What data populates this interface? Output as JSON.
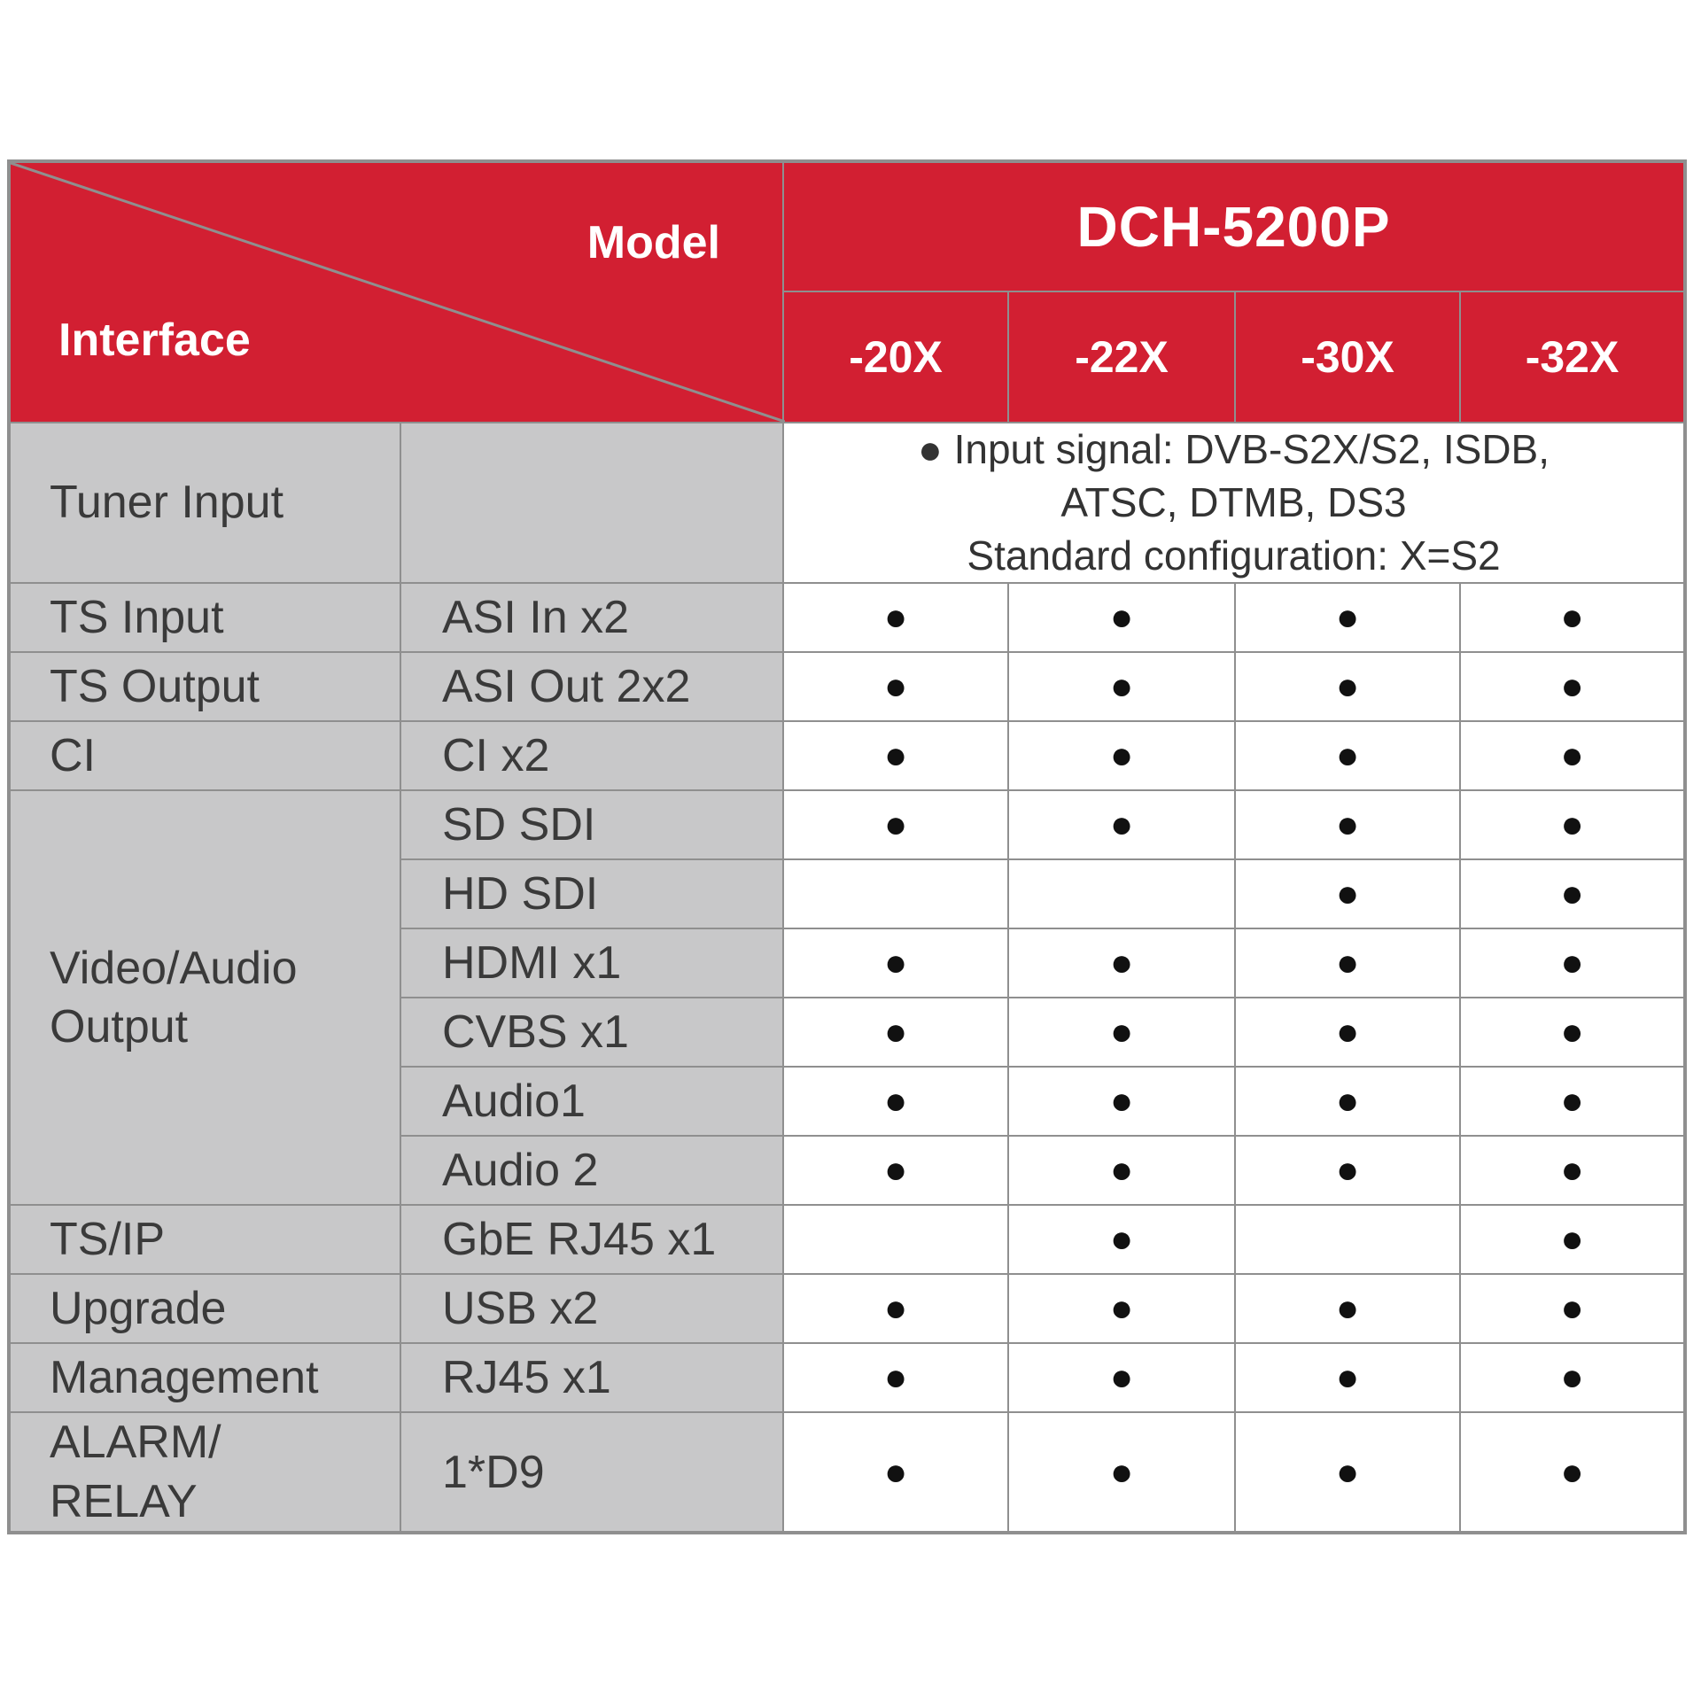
{
  "header": {
    "corner_model_label": "Model",
    "corner_interface_label": "Interface",
    "model_name": "DCH-5200P",
    "variants": [
      "-20X",
      "-22X",
      "-30X",
      "-32X"
    ]
  },
  "tuner_input": {
    "label": "Tuner Input",
    "note_line1": "● Input signal: DVB-S2X/S2, ISDB,",
    "note_line2": "ATSC, DTMB, DS3",
    "note_line3": "Standard configuration: X=S2"
  },
  "rows": [
    {
      "group": "TS Input",
      "interface": "ASI In x2",
      "values": [
        "●",
        "●",
        "●",
        "●"
      ]
    },
    {
      "group": "TS Output",
      "interface": "ASI Out 2x2",
      "values": [
        "●",
        "●",
        "●",
        "●"
      ]
    },
    {
      "group": "CI",
      "interface": "CI x2",
      "values": [
        "●",
        "●",
        "●",
        "●"
      ]
    },
    {
      "group": "Video/Audio Output",
      "interface": "SD SDI",
      "values": [
        "●",
        "●",
        "●",
        "●"
      ]
    },
    {
      "group": "",
      "interface": "HD SDI",
      "values": [
        "",
        "",
        "●",
        "●"
      ]
    },
    {
      "group": "",
      "interface": "HDMI x1",
      "values": [
        "●",
        "●",
        "●",
        "●"
      ]
    },
    {
      "group": "",
      "interface": "CVBS x1",
      "values": [
        "●",
        "●",
        "●",
        "●"
      ]
    },
    {
      "group": "",
      "interface": "Audio1",
      "values": [
        "●",
        "●",
        "●",
        "●"
      ]
    },
    {
      "group": "",
      "interface": "Audio 2",
      "values": [
        "●",
        "●",
        "●",
        "●"
      ]
    },
    {
      "group": "TS/IP",
      "interface": "GbE RJ45 x1",
      "values": [
        "",
        "●",
        "",
        "●"
      ]
    },
    {
      "group": "Upgrade",
      "interface": "USB x2",
      "values": [
        "●",
        "●",
        "●",
        "●"
      ]
    },
    {
      "group": "Management",
      "interface": "RJ45 x1",
      "values": [
        "●",
        "●",
        "●",
        "●"
      ]
    },
    {
      "group": "ALARM/ RELAY",
      "interface": "1*D9",
      "values": [
        "●",
        "●",
        "●",
        "●"
      ]
    }
  ],
  "video_audio_label_line1": "Video/Audio",
  "video_audio_label_line2": "Output",
  "alarm_label_line1": "ALARM/",
  "alarm_label_line2": "RELAY",
  "colors": {
    "header_red": "#d21f32",
    "label_gray": "#c8c8c9",
    "border_gray": "#8f8f8f"
  }
}
